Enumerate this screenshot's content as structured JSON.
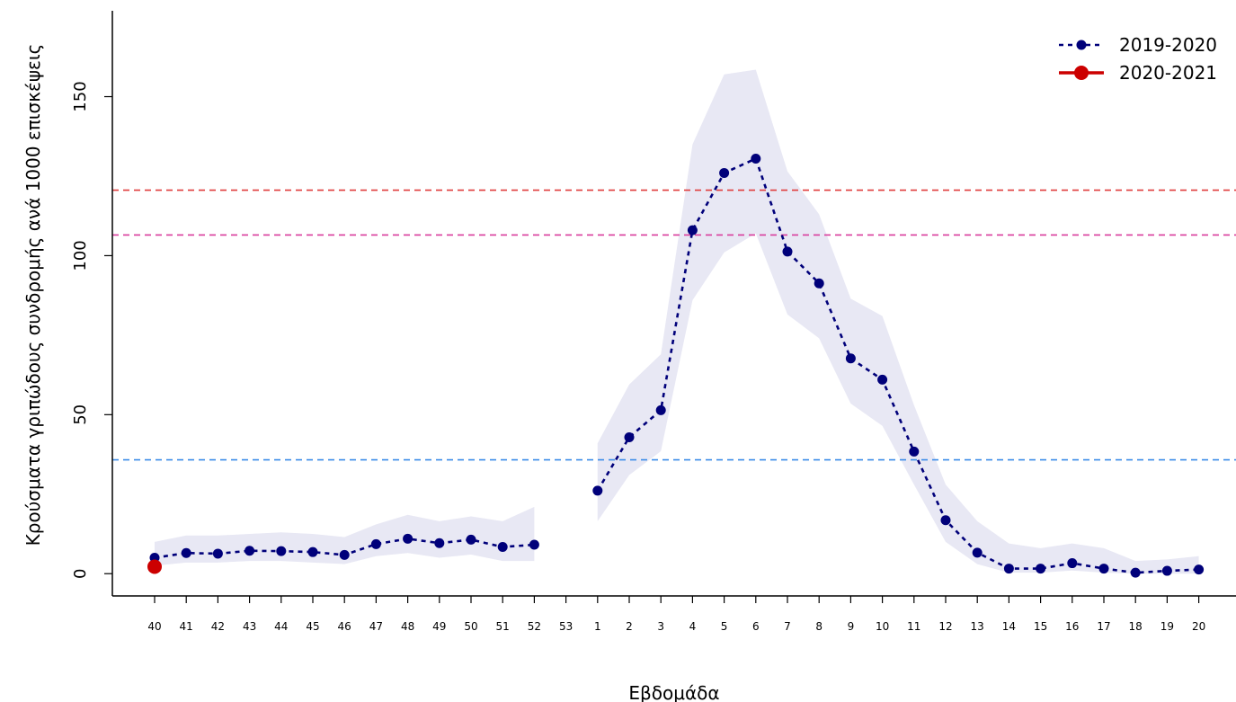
{
  "chart_data": {
    "type": "line",
    "title": "",
    "xlabel": "Εβδομάδα",
    "ylabel": "Κρούσματα γριπώδους συνδρομής ανά 1000 επισκέψεις",
    "ylim": [
      -7,
      177
    ],
    "y_ticks": [
      0,
      50,
      100,
      150
    ],
    "grid": false,
    "legend_position": "top-right",
    "categories": [
      "40",
      "41",
      "42",
      "43",
      "44",
      "45",
      "46",
      "47",
      "48",
      "49",
      "50",
      "51",
      "52",
      "53",
      "1",
      "2",
      "3",
      "4",
      "5",
      "6",
      "7",
      "8",
      "9",
      "10",
      "11",
      "12",
      "13",
      "14",
      "15",
      "16",
      "17",
      "18",
      "19",
      "20"
    ],
    "series": [
      {
        "name": "2019-2020",
        "color": "#00007a",
        "style": "dashed",
        "values": [
          5,
          6.5,
          6.3,
          7.2,
          7.1,
          6.8,
          5.9,
          9.3,
          11,
          9.6,
          10.7,
          8.4,
          9.1,
          null,
          26.1,
          42.9,
          51.4,
          108,
          126,
          130.5,
          101.3,
          91.3,
          67.7,
          61,
          38.4,
          16.8,
          6.6,
          1.6,
          1.6,
          3.3,
          1.6,
          0.3,
          0.9,
          1.3
        ],
        "band_lower": [
          2.5,
          3.5,
          3.5,
          4,
          4,
          3.5,
          3,
          5.5,
          6.5,
          5,
          6,
          4,
          4,
          null,
          16.5,
          31,
          38.5,
          86,
          101,
          107,
          81.5,
          74,
          53.5,
          46.5,
          28,
          10,
          3,
          0.3,
          0.3,
          1,
          0.3,
          0,
          0,
          0
        ],
        "band_upper": [
          10,
          12,
          12,
          12.5,
          13,
          12.5,
          11.5,
          15.5,
          18.5,
          16.5,
          18,
          16.5,
          21,
          null,
          41,
          59.5,
          69,
          135,
          157,
          158.5,
          126.5,
          113,
          86.5,
          81,
          53,
          28,
          16.5,
          9.5,
          8,
          9.5,
          8,
          4,
          4.5,
          5.5
        ],
        "band_color": "#e8e8f4"
      },
      {
        "name": "2020-2021",
        "color": "#cc0000",
        "style": "solid",
        "values": [
          2.2,
          null,
          null,
          null,
          null,
          null,
          null,
          null,
          null,
          null,
          null,
          null,
          null,
          null,
          null,
          null,
          null,
          null,
          null,
          null,
          null,
          null,
          null,
          null,
          null,
          null,
          null,
          null,
          null,
          null,
          null,
          null,
          null,
          null
        ]
      }
    ],
    "reference_lines": [
      {
        "value": 120.6,
        "color": "#e03c3c",
        "style": "dashed"
      },
      {
        "value": 106.5,
        "color": "#d83c9c",
        "style": "dashed"
      },
      {
        "value": 35.8,
        "color": "#3c8ce8",
        "style": "dashed"
      }
    ]
  }
}
